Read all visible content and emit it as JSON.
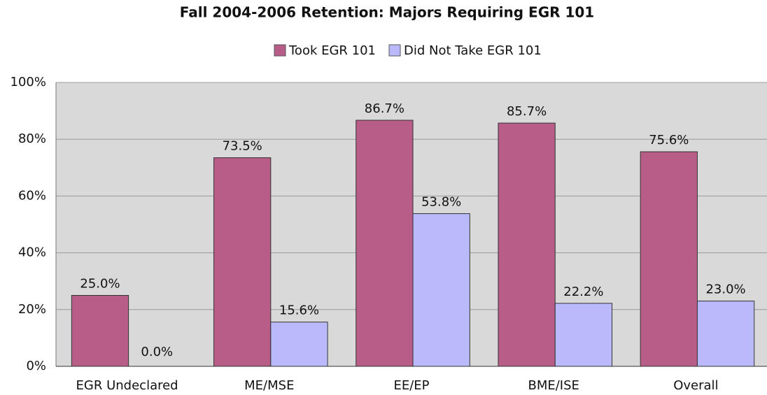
{
  "chart_data": {
    "type": "bar",
    "title": "Fall 2004-2006 Retention:  Majors Requiring EGR 101",
    "categories": [
      "EGR Undeclared",
      "ME/MSE",
      "EE/EP",
      "BME/ISE",
      "Overall"
    ],
    "series": [
      {
        "name": "Took EGR 101",
        "color": "#b85d88",
        "values": [
          25.0,
          73.5,
          86.7,
          85.7,
          75.6
        ],
        "value_labels": [
          "25.0%",
          "73.5%",
          "86.7%",
          "85.7%",
          "75.6%"
        ]
      },
      {
        "name": "Did Not Take EGR 101",
        "color": "#b9b9fc",
        "values": [
          0.0,
          15.6,
          53.8,
          22.2,
          23.0
        ],
        "value_labels": [
          "0.0%",
          "15.6%",
          "53.8%",
          "22.2%",
          "23.0%"
        ]
      }
    ],
    "ylim": [
      0,
      100
    ],
    "yticks": [
      {
        "value": 0,
        "label": "0%"
      },
      {
        "value": 20,
        "label": "20%"
      },
      {
        "value": 40,
        "label": "40%"
      },
      {
        "value": 60,
        "label": "60%"
      },
      {
        "value": 80,
        "label": "80%"
      },
      {
        "value": 100,
        "label": "100%"
      }
    ],
    "grid": true,
    "legend": "top"
  }
}
